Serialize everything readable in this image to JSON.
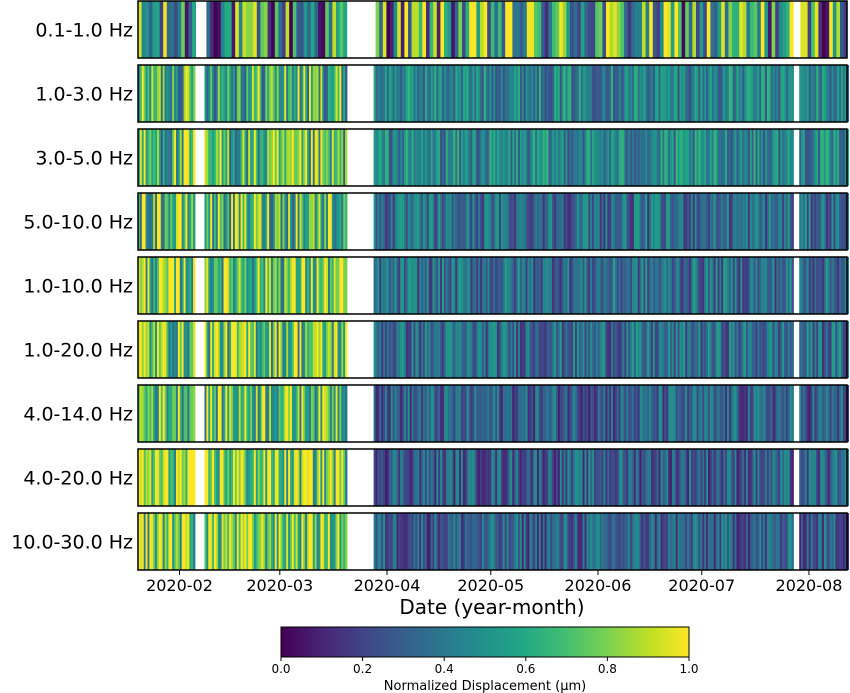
{
  "chart_data": {
    "type": "heatmap",
    "title": "",
    "xlabel": "Date (year-month)",
    "x_ticks": [
      "2020-02",
      "2020-03",
      "2020-04",
      "2020-05",
      "2020-06",
      "2020-07",
      "2020-08"
    ],
    "x_tick_dates": [
      "2020-02-01",
      "2020-03-01",
      "2020-04-01",
      "2020-05-01",
      "2020-06-01",
      "2020-07-01",
      "2020-08-01"
    ],
    "xlim": [
      "2020-01-20",
      "2020-08-12"
    ],
    "data_gaps": [
      {
        "start": "2020-02-05",
        "end": "2020-02-08",
        "bands": "all"
      },
      {
        "start": "2020-03-20",
        "end": "2020-03-28",
        "bands": "all"
      },
      {
        "start": "2020-07-27",
        "end": "2020-07-29",
        "bands": "all"
      }
    ],
    "rows": [
      {
        "label": "0.1-1.0 Hz",
        "pre_gap_level": 0.45,
        "post_gap_level": 0.55
      },
      {
        "label": "1.0-3.0 Hz",
        "pre_gap_level": 0.65,
        "post_gap_level": 0.45
      },
      {
        "label": "3.0-5.0 Hz",
        "pre_gap_level": 0.65,
        "post_gap_level": 0.45
      },
      {
        "label": "5.0-10.0 Hz",
        "pre_gap_level": 0.7,
        "post_gap_level": 0.35
      },
      {
        "label": "1.0-10.0 Hz",
        "pre_gap_level": 0.75,
        "post_gap_level": 0.35
      },
      {
        "label": "1.0-20.0 Hz",
        "pre_gap_level": 0.75,
        "post_gap_level": 0.35
      },
      {
        "label": "4.0-14.0 Hz",
        "pre_gap_level": 0.75,
        "post_gap_level": 0.3
      },
      {
        "label": "4.0-20.0 Hz",
        "pre_gap_level": 0.8,
        "post_gap_level": 0.3
      },
      {
        "label": "10.0-30.0 Hz",
        "pre_gap_level": 0.8,
        "post_gap_level": 0.3
      }
    ],
    "colorbar": {
      "title": "Normalized Displacement (µm)",
      "colormap": "viridis",
      "range": [
        0.0,
        1.0
      ],
      "ticks": [
        "0.0",
        "0.2",
        "0.4",
        "0.6",
        "0.8",
        "1.0"
      ]
    }
  }
}
